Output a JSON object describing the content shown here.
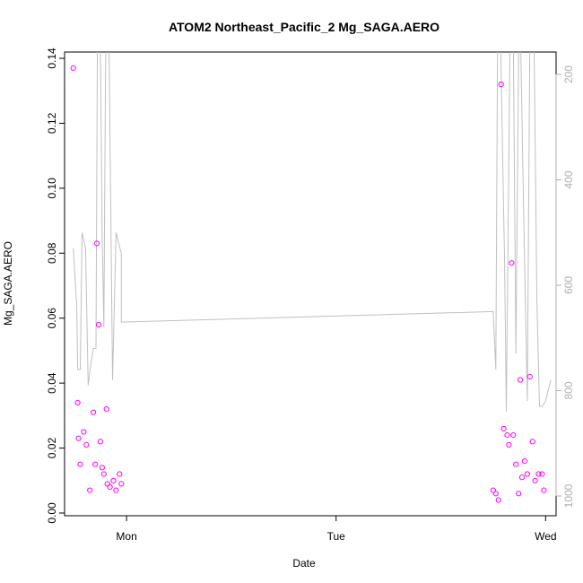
{
  "chart_data": {
    "type": "scatter",
    "title": "ATOM2 Northeast_Pacific_2 Mg_SAGA.AERO",
    "xlabel": "Date",
    "ylabel": "Mg_SAGA.AERO",
    "x_ticks": [
      {
        "label": "Mon",
        "value": 0
      },
      {
        "label": "Tue",
        "value": 24
      },
      {
        "label": "Wed",
        "value": 48
      }
    ],
    "xlim": [
      -7.1,
      49.2
    ],
    "ylim": [
      0,
      0.14
    ],
    "y_ticks": [
      0.0,
      0.02,
      0.04,
      0.06,
      0.08,
      0.1,
      0.12,
      0.14
    ],
    "y_tick_labels": [
      "0.00",
      "0.02",
      "0.04",
      "0.06",
      "0.08",
      "0.10",
      "0.12",
      "0.14"
    ],
    "y2_ticks": [
      200,
      400,
      600,
      800,
      1000
    ],
    "y2_tick_labels": [
      "200",
      "400",
      "600",
      "800",
      "1000"
    ],
    "y2lim_reversed": [
      130,
      1000
    ],
    "grid": false,
    "colors": {
      "points": "#ff00ff",
      "line": "#c0c0c0",
      "right_axis": "#b0b0b0"
    },
    "series": [
      {
        "type": "scatter",
        "points": [
          [
            -6.1,
            0.137
          ],
          [
            -5.6,
            0.034
          ],
          [
            -5.5,
            0.023
          ],
          [
            -5.3,
            0.015
          ],
          [
            -4.9,
            0.025
          ],
          [
            -4.6,
            0.021
          ],
          [
            -4.2,
            0.007
          ],
          [
            -3.8,
            0.031
          ],
          [
            -3.6,
            0.015
          ],
          [
            -3.4,
            0.083
          ],
          [
            -3.2,
            0.058
          ],
          [
            -3.0,
            0.022
          ],
          [
            -2.8,
            0.014
          ],
          [
            -2.6,
            0.012
          ],
          [
            -2.3,
            0.032
          ],
          [
            -2.2,
            0.009
          ],
          [
            -1.9,
            0.008
          ],
          [
            -1.5,
            0.01
          ],
          [
            -1.2,
            0.007
          ],
          [
            -0.8,
            0.012
          ],
          [
            -0.6,
            0.009
          ],
          [
            42.0,
            0.007
          ],
          [
            42.3,
            0.006
          ],
          [
            42.6,
            0.004
          ],
          [
            42.9,
            0.132
          ],
          [
            43.2,
            0.026
          ],
          [
            43.6,
            0.024
          ],
          [
            43.8,
            0.021
          ],
          [
            44.1,
            0.077
          ],
          [
            44.3,
            0.024
          ],
          [
            44.6,
            0.015
          ],
          [
            44.9,
            0.006
          ],
          [
            45.1,
            0.041
          ],
          [
            45.3,
            0.011
          ],
          [
            45.6,
            0.016
          ],
          [
            45.9,
            0.012
          ],
          [
            46.2,
            0.042
          ],
          [
            46.5,
            0.022
          ],
          [
            46.8,
            0.01
          ],
          [
            47.2,
            0.012
          ],
          [
            47.6,
            0.012
          ],
          [
            47.8,
            0.007
          ]
        ]
      },
      {
        "type": "line",
        "axis": "right",
        "points": [
          [
            -6.1,
            530
          ],
          [
            -5.7,
            640
          ],
          [
            -5.6,
            760
          ],
          [
            -5.3,
            760
          ],
          [
            -5.1,
            500
          ],
          [
            -4.7,
            530
          ],
          [
            -4.5,
            700
          ],
          [
            -4.4,
            790
          ],
          [
            -4.1,
            750
          ],
          [
            -3.8,
            720
          ],
          [
            -3.5,
            720
          ],
          [
            -3.3,
            0
          ],
          [
            -3.0,
            140
          ],
          [
            -2.8,
            500
          ],
          [
            -2.6,
            680
          ],
          [
            -2.4,
            180
          ],
          [
            -2.1,
            0
          ],
          [
            -1.6,
            780
          ],
          [
            -1.2,
            500
          ],
          [
            -0.9,
            520
          ],
          [
            -0.6,
            540
          ],
          [
            -0.6,
            670
          ],
          [
            42.0,
            650
          ],
          [
            42.3,
            760
          ],
          [
            42.5,
            120
          ],
          [
            42.7,
            0
          ],
          [
            43.3,
            560
          ],
          [
            43.5,
            840
          ],
          [
            43.7,
            500
          ],
          [
            44.0,
            0
          ],
          [
            44.3,
            130
          ],
          [
            44.6,
            730
          ],
          [
            45.0,
            0
          ],
          [
            45.5,
            480
          ],
          [
            45.9,
            820
          ],
          [
            46.2,
            120
          ],
          [
            46.6,
            20
          ],
          [
            47.0,
            630
          ],
          [
            47.3,
            830
          ],
          [
            47.6,
            830
          ],
          [
            48.0,
            820
          ],
          [
            48.3,
            800
          ],
          [
            48.6,
            780
          ]
        ]
      }
    ]
  }
}
